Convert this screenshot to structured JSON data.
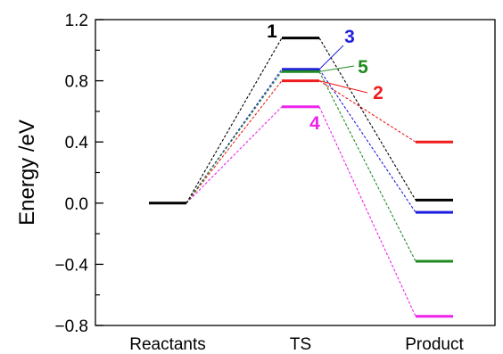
{
  "chart_data": {
    "type": "line",
    "subtype": "energy-level-diagram",
    "title": "",
    "xlabel": "",
    "ylabel": "Energy /eV",
    "categories": [
      "Reactants",
      "TS",
      "Product"
    ],
    "ylim": [
      -0.8,
      1.2
    ],
    "yticks_major": [
      "1.2",
      "0.8",
      "0.4",
      "0.0",
      "−0.4",
      "−0.8"
    ],
    "ytick_values": [
      1.2,
      0.8,
      0.4,
      0.0,
      -0.4,
      -0.8
    ],
    "grid": false,
    "legend": "none",
    "series": [
      {
        "name": "1",
        "color": "#000000",
        "values": [
          0.0,
          1.08,
          0.02
        ]
      },
      {
        "name": "3",
        "color": "#1f1fe0",
        "values": [
          0.0,
          0.875,
          -0.06
        ]
      },
      {
        "name": "5",
        "color": "#1f8a1f",
        "values": [
          0.0,
          0.86,
          -0.38
        ]
      },
      {
        "name": "2",
        "color": "#ee1c1c",
        "values": [
          0.0,
          0.8,
          0.4
        ]
      },
      {
        "name": "4",
        "color": "#ee22ee",
        "values": [
          0.0,
          0.63,
          -0.74
        ]
      }
    ]
  }
}
